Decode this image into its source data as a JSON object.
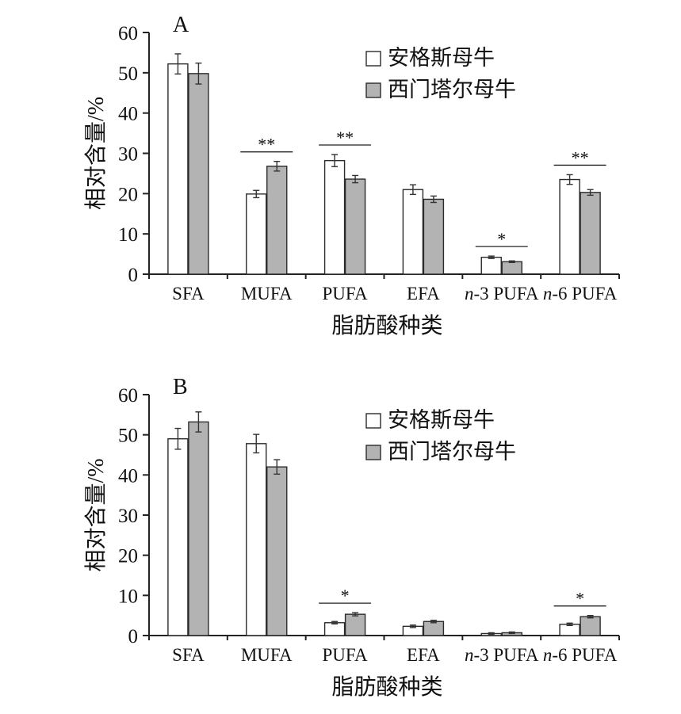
{
  "legend": [
    "安格斯母牛",
    "西门塔尔母牛"
  ],
  "colors": {
    "series1": "#ffffff",
    "series2": "#b3b3b3",
    "edge": "#2b2b2b"
  },
  "chart_data": [
    {
      "type": "bar",
      "panel": "A",
      "ylabel": "相对含量/%",
      "xlabel": "脂肪酸种类",
      "ylim": [
        0,
        60
      ],
      "yticks": [
        0,
        10,
        20,
        30,
        40,
        50,
        60
      ],
      "categories": [
        {
          "prefix": "",
          "label": "SFA"
        },
        {
          "prefix": "",
          "label": "MUFA"
        },
        {
          "prefix": "",
          "label": "PUFA"
        },
        {
          "prefix": "",
          "label": "EFA"
        },
        {
          "prefix": "n",
          "label": "-3 PUFA"
        },
        {
          "prefix": "n",
          "label": "-6 PUFA"
        }
      ],
      "series": [
        {
          "name": "安格斯母牛",
          "values": [
            52.2,
            19.9,
            28.2,
            21.0,
            4.2,
            23.5
          ],
          "errors": [
            2.5,
            0.9,
            1.5,
            1.2,
            0.3,
            1.2
          ]
        },
        {
          "name": "西门塔尔母牛",
          "values": [
            49.8,
            26.8,
            23.6,
            18.6,
            3.1,
            20.3
          ],
          "errors": [
            2.6,
            1.2,
            0.9,
            0.8,
            0.2,
            0.7
          ]
        }
      ],
      "significance": [
        "",
        "**",
        "**",
        "",
        "*",
        "**"
      ]
    },
    {
      "type": "bar",
      "panel": "B",
      "ylabel": "相对含量/%",
      "xlabel": "脂肪酸种类",
      "ylim": [
        0,
        60
      ],
      "yticks": [
        0,
        10,
        20,
        30,
        40,
        50,
        60
      ],
      "categories": [
        {
          "prefix": "",
          "label": "SFA"
        },
        {
          "prefix": "",
          "label": "MUFA"
        },
        {
          "prefix": "",
          "label": "PUFA"
        },
        {
          "prefix": "",
          "label": "EFA"
        },
        {
          "prefix": "n",
          "label": "-3 PUFA"
        },
        {
          "prefix": "n",
          "label": "-6 PUFA"
        }
      ],
      "series": [
        {
          "name": "安格斯母牛",
          "values": [
            49.0,
            47.8,
            3.2,
            2.3,
            0.5,
            2.8
          ],
          "errors": [
            2.6,
            2.3,
            0.3,
            0.3,
            0.2,
            0.3
          ]
        },
        {
          "name": "西门塔尔母牛",
          "values": [
            53.2,
            42.0,
            5.3,
            3.5,
            0.7,
            4.7
          ],
          "errors": [
            2.5,
            1.8,
            0.4,
            0.3,
            0.2,
            0.3
          ]
        }
      ],
      "significance": [
        "",
        "",
        "*",
        "",
        "",
        "*"
      ]
    }
  ]
}
